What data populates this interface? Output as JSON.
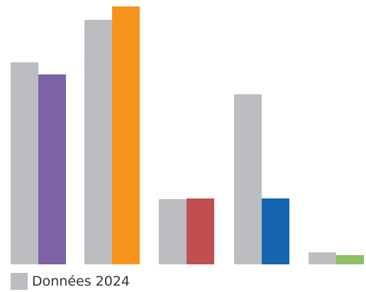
{
  "chart_data": {
    "type": "bar",
    "categories": [
      "",
      "",
      "",
      "",
      ""
    ],
    "series": [
      {
        "name": "Données 2024",
        "values": [
          285,
          345,
          92,
          240,
          17
        ],
        "color": "#BCBDC0"
      },
      {
        "values": [
          268,
          364,
          93,
          93,
          13
        ],
        "colors": [
          "#7B63A6",
          "#F7941D",
          "#C0504D",
          "#1565B0",
          "#8CC063"
        ]
      }
    ],
    "ylim": [
      0,
      364
    ],
    "grid": false,
    "legend": "bottom-left"
  }
}
